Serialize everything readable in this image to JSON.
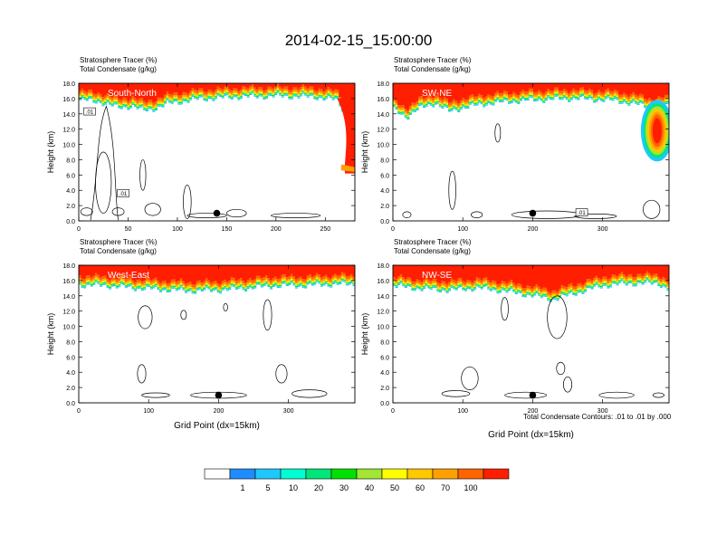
{
  "title": "2014-02-15_15:00:00",
  "note": "Total Condensate Contours: .01 to .01 by .000",
  "colorbar": {
    "colors": [
      "#ffffff",
      "#1e8cff",
      "#1ec8ff",
      "#00ffd2",
      "#00e678",
      "#00e100",
      "#a0e632",
      "#ffff00",
      "#ffc800",
      "#ffa000",
      "#ff6400",
      "#ff1e00"
    ],
    "labels": [
      "1",
      "5",
      "10",
      "20",
      "30",
      "40",
      "50",
      "60",
      "70",
      "100"
    ]
  },
  "chart_data": [
    {
      "type": "heatmap",
      "panel_label": "South-North",
      "header_line1": "Stratosphere Tracer   (%)",
      "header_line2": "Total Condensate   (g/kg)",
      "ylabel": "Height (km)",
      "xlabel": "",
      "xlim": [
        0,
        280
      ],
      "ylim": [
        0,
        18
      ],
      "xticks": [
        0,
        50,
        100,
        150,
        200,
        250
      ],
      "yticks": [
        "0.0",
        "2.0",
        "4.0",
        "6.0",
        "8.0",
        "10.0",
        "12.0",
        "14.0",
        "16.0",
        "18.0"
      ],
      "tracer_base_km": [
        [
          0,
          15.8
        ],
        [
          20,
          15.6
        ],
        [
          40,
          14.8
        ],
        [
          55,
          15.0
        ],
        [
          65,
          14.4
        ],
        [
          75,
          14.6
        ],
        [
          90,
          15.3
        ],
        [
          120,
          15.9
        ],
        [
          160,
          16.2
        ],
        [
          200,
          16.3
        ],
        [
          240,
          16.2
        ],
        [
          262,
          15.8
        ],
        [
          270,
          14.0
        ],
        [
          275,
          11.0
        ],
        [
          278,
          9.0
        ],
        [
          280,
          6.0
        ]
      ],
      "contour_labels": [
        ".01",
        ".01"
      ],
      "marker_x": 140
    },
    {
      "type": "heatmap",
      "panel_label": "SW-NE",
      "header_line1": "Stratosphere Tracer   (%)",
      "header_line2": "Total Condensate   (g/kg)",
      "ylabel": "Height (km)",
      "xlabel": "",
      "xlim": [
        0,
        395
      ],
      "ylim": [
        0,
        18
      ],
      "xticks": [
        0,
        100,
        200,
        300
      ],
      "yticks": [
        "0.0",
        "2.0",
        "4.0",
        "6.0",
        "8.0",
        "10.0",
        "12.0",
        "14.0",
        "16.0",
        "18.0"
      ],
      "tracer_base_km": [
        [
          0,
          14.6
        ],
        [
          20,
          13.6
        ],
        [
          40,
          14.8
        ],
        [
          60,
          15.4
        ],
        [
          80,
          14.3
        ],
        [
          100,
          14.8
        ],
        [
          140,
          15.4
        ],
        [
          200,
          15.8
        ],
        [
          260,
          16.0
        ],
        [
          320,
          15.7
        ],
        [
          350,
          15.2
        ],
        [
          370,
          14.8
        ],
        [
          395,
          15.0
        ]
      ],
      "contour_labels": [
        ".01"
      ],
      "marker_x": 200
    },
    {
      "type": "heatmap",
      "panel_label": "West-East",
      "header_line1": "Stratosphere Tracer   (%)",
      "header_line2": "Total Condensate   (g/kg)",
      "ylabel": "Height (km)",
      "xlabel": "Grid Point (dx=15km)",
      "xlim": [
        0,
        395
      ],
      "ylim": [
        0,
        18
      ],
      "xticks": [
        0,
        100,
        200,
        300
      ],
      "yticks": [
        "0.0",
        "2.0",
        "4.0",
        "6.0",
        "8.0",
        "10.0",
        "12.0",
        "14.0",
        "16.0",
        "18.0"
      ],
      "tracer_base_km": [
        [
          0,
          15.4
        ],
        [
          40,
          15.3
        ],
        [
          80,
          15.0
        ],
        [
          120,
          14.8
        ],
        [
          160,
          14.6
        ],
        [
          200,
          14.7
        ],
        [
          240,
          15.0
        ],
        [
          280,
          15.3
        ],
        [
          320,
          15.3
        ],
        [
          360,
          15.5
        ],
        [
          395,
          15.5
        ]
      ],
      "contour_labels": [],
      "marker_x": 200
    },
    {
      "type": "heatmap",
      "panel_label": "NW-SE",
      "header_line1": "Stratosphere Tracer   (%)",
      "header_line2": "Total Condensate   (g/kg)",
      "ylabel": "Height (km)",
      "xlabel": "Grid Point (dx=15km)",
      "xlim": [
        0,
        395
      ],
      "ylim": [
        0,
        18
      ],
      "xticks": [
        0,
        100,
        200,
        300
      ],
      "yticks": [
        "0.0",
        "2.0",
        "4.0",
        "6.0",
        "8.0",
        "10.0",
        "12.0",
        "14.0",
        "16.0",
        "18.0"
      ],
      "tracer_base_km": [
        [
          0,
          15.3
        ],
        [
          40,
          14.9
        ],
        [
          80,
          14.7
        ],
        [
          120,
          15.0
        ],
        [
          160,
          14.6
        ],
        [
          200,
          14.0
        ],
        [
          230,
          13.5
        ],
        [
          260,
          14.3
        ],
        [
          300,
          15.3
        ],
        [
          340,
          15.6
        ],
        [
          380,
          15.6
        ],
        [
          395,
          14.8
        ]
      ],
      "contour_labels": [],
      "marker_x": 200
    }
  ]
}
